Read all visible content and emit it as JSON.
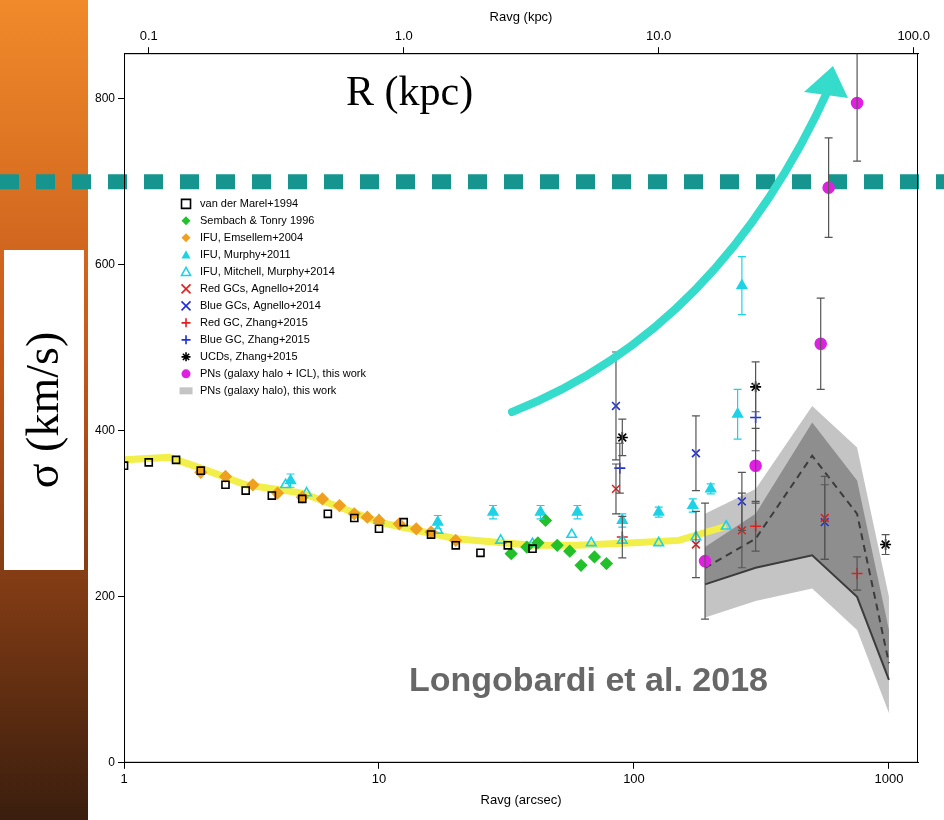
{
  "chart_data": {
    "type": "scatter",
    "log": "x",
    "grid": false,
    "legend": "top-left",
    "x_label": "Ravg (arcsec)",
    "x2_label": "Ravg (kpc)",
    "y_label": "σ (km/s)",
    "xlim": [
      1,
      1300
    ],
    "xticks": [
      1,
      10,
      100,
      1000
    ],
    "x2lim": [
      0.08,
      104
    ],
    "x2ticks": [
      0.1,
      {
        "value": 1,
        "label": "1.0"
      },
      {
        "value": 10,
        "label": "10.0"
      },
      {
        "value": 100,
        "label": "100.0"
      }
    ],
    "ylim": [
      0,
      855
    ],
    "yticks": [
      0,
      200,
      400,
      600,
      800
    ],
    "annotations": [
      {
        "text": "R (kpc)"
      },
      {
        "text": "Longobardi et al. 2018"
      }
    ],
    "hline": {
      "y": 700,
      "color": "#16958f",
      "line_style": "dashed"
    },
    "series": [
      {
        "name": "van der Marel+1994",
        "color": "#000000",
        "marker": "square_open",
        "x": [
          1,
          1.25,
          1.6,
          2,
          2.5,
          3,
          3.8,
          5,
          6.3,
          8,
          10,
          12.5,
          16,
          20,
          25,
          32,
          40
        ],
        "values": [
          358,
          362,
          365,
          352,
          335,
          328,
          322,
          318,
          300,
          295,
          282,
          290,
          275,
          262,
          253,
          262,
          258
        ]
      },
      {
        "name": "Sembach & Tonry 1996",
        "color": "#22c02a",
        "marker": "diamond",
        "x": [
          33,
          38,
          42,
          45,
          50,
          56,
          62,
          70,
          78
        ],
        "values": [
          252,
          260,
          265,
          292,
          262,
          255,
          238,
          248,
          240
        ]
      },
      {
        "name": "IFU, Emsellem+2004",
        "color": "#f0a020",
        "marker": "diamond",
        "x": [
          2,
          2.5,
          3.2,
          4,
          5,
          6,
          7,
          8,
          9,
          10,
          12,
          14,
          16,
          20
        ],
        "values": [
          350,
          345,
          335,
          325,
          320,
          318,
          310,
          300,
          296,
          292,
          288,
          282,
          278,
          268
        ]
      },
      {
        "name": "IFU, Murphy+2011",
        "color": "#1ed2e6",
        "marker": "triangle",
        "x": [
          4.5,
          17,
          28,
          43,
          60,
          90,
          125,
          170,
          200,
          255,
          265
        ],
        "values": [
          340,
          290,
          302,
          302,
          302,
          292,
          302,
          310,
          330,
          420,
          575
        ],
        "errors": [
          8,
          8,
          8,
          8,
          8,
          8,
          6,
          8,
          6,
          30,
          35
        ]
      },
      {
        "name": "IFU, Mitchell, Murphy+2014",
        "color": "#1ed2e6",
        "marker": "triangle_open",
        "x": [
          4.3,
          5.2,
          10,
          17,
          30,
          40,
          57,
          68,
          90,
          125,
          175,
          230
        ],
        "values": [
          335,
          325,
          292,
          280,
          268,
          264,
          275,
          265,
          268,
          265,
          272,
          285
        ]
      },
      {
        "name": "Red GCs, Agnello+2014",
        "color": "#e02020",
        "marker": "x",
        "x": [
          85,
          175,
          265,
          560
        ],
        "values": [
          330,
          263,
          280,
          295
        ],
        "errors": [
          30,
          40,
          45,
          50
        ]
      },
      {
        "name": "Blue GCs, Agnello+2014",
        "color": "#2030d8",
        "marker": "x",
        "x": [
          85,
          175,
          265,
          560
        ],
        "values": [
          430,
          373,
          315,
          290
        ],
        "errors": [
          65,
          45,
          35,
          45
        ]
      },
      {
        "name": "Red GC, Zhang+2015",
        "color": "#e02020",
        "marker": "plus",
        "x": [
          90,
          300,
          750
        ],
        "values": [
          272,
          285,
          228
        ],
        "errors": [
          25,
          30,
          20
        ]
      },
      {
        "name": "Blue GC, Zhang+2015",
        "color": "#2030d8",
        "marker": "plus",
        "x": [
          88,
          300
        ],
        "values": [
          355,
          416
        ],
        "errors": [
          30,
          40
        ]
      },
      {
        "name": "UCDs, Zhang+2015",
        "color": "#000000",
        "marker": "star",
        "x": [
          90,
          300,
          970
        ],
        "values": [
          392,
          453,
          263
        ],
        "errors": [
          22,
          30,
          12
        ]
      },
      {
        "name": "PNs (galaxy halo + ICL), this work",
        "color": "#e020e0",
        "marker": "circle",
        "x": [
          190,
          300,
          540,
          580,
          750
        ],
        "values": [
          243,
          358,
          505,
          693,
          795
        ],
        "errors": [
          70,
          45,
          55,
          60,
          70
        ]
      },
      {
        "name": "PNs (galaxy halo), this work",
        "type": "band",
        "color": "#c4c4c4",
        "x": [
          190,
          300,
          500,
          750,
          1000
        ],
        "band_low": [
          175,
          195,
          210,
          160,
          60
        ],
        "inner_low": [
          215,
          235,
          250,
          200,
          100
        ],
        "dashed": [
          235,
          270,
          370,
          300,
          120
        ],
        "inner_high": [
          260,
          300,
          410,
          340,
          160
        ],
        "band_high": [
          300,
          330,
          430,
          380,
          200
        ]
      },
      {
        "type": "line",
        "color": "#f2ee4a",
        "x": [
          1,
          1.5,
          2,
          3,
          5,
          10,
          20,
          40,
          60,
          100,
          150,
          230
        ],
        "values": [
          365,
          368,
          355,
          335,
          325,
          290,
          270,
          262,
          262,
          265,
          268,
          285
        ]
      }
    ]
  }
}
